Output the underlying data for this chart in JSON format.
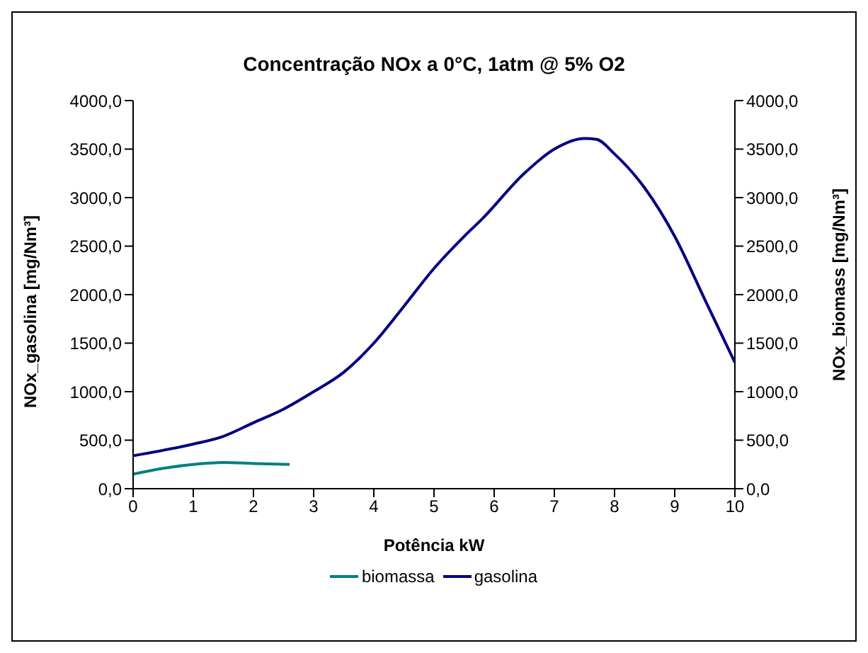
{
  "chart_data": {
    "type": "line",
    "title": "Concentração NOx a 0°C, 1atm @ 5% O2",
    "xlabel": "Potência kW",
    "ylabel": "NOx_gasolina [mg/Nm³]",
    "y2label": "NOx_biomass [mg/Nm³]",
    "xlim": [
      0,
      10
    ],
    "xticks": [
      0,
      1,
      2,
      3,
      4,
      5,
      6,
      7,
      8,
      9,
      10
    ],
    "ylim": [
      0,
      4000
    ],
    "yticks": [
      {
        "value": 0,
        "label": "0,0"
      },
      {
        "value": 500,
        "label": "500,0"
      },
      {
        "value": 1000,
        "label": "1000,0"
      },
      {
        "value": 1500,
        "label": "1500,0"
      },
      {
        "value": 2000,
        "label": "2000,0"
      },
      {
        "value": 2500,
        "label": "2500,0"
      },
      {
        "value": 3000,
        "label": "3000,0"
      },
      {
        "value": 3500,
        "label": "3500,0"
      },
      {
        "value": 4000,
        "label": "4000,0"
      }
    ],
    "y2lim": [
      0,
      4000
    ],
    "y2ticks": [
      {
        "value": 0,
        "label": "0,0"
      },
      {
        "value": 500,
        "label": "500,0"
      },
      {
        "value": 1000,
        "label": "1000,0"
      },
      {
        "value": 1500,
        "label": "1500,0"
      },
      {
        "value": 2000,
        "label": "2000,0"
      },
      {
        "value": 2500,
        "label": "2500,0"
      },
      {
        "value": 3000,
        "label": "3000,0"
      },
      {
        "value": 3500,
        "label": "3500,0"
      },
      {
        "value": 4000,
        "label": "4000,0"
      }
    ],
    "grid": false,
    "legend": "bottom",
    "marker": "none",
    "line_style": "solid",
    "series": [
      {
        "name": "biomassa",
        "color": "#008080",
        "x": [
          0,
          0.5,
          1,
          1.5,
          2,
          2.6
        ],
        "values": [
          150,
          210,
          250,
          270,
          260,
          250
        ]
      },
      {
        "name": "gasolina",
        "color": "#000080",
        "x": [
          0,
          1,
          1.5,
          2,
          2.5,
          3,
          3.5,
          4,
          4.5,
          5,
          5.5,
          5.8,
          6.5,
          7,
          7.5,
          7.7,
          8,
          8.5,
          9,
          9.5,
          10
        ],
        "values": [
          340,
          460,
          540,
          680,
          820,
          1000,
          1200,
          1500,
          1880,
          2270,
          2600,
          2780,
          3250,
          3500,
          3610,
          3600,
          3450,
          3100,
          2600,
          1950,
          1300
        ]
      }
    ]
  }
}
